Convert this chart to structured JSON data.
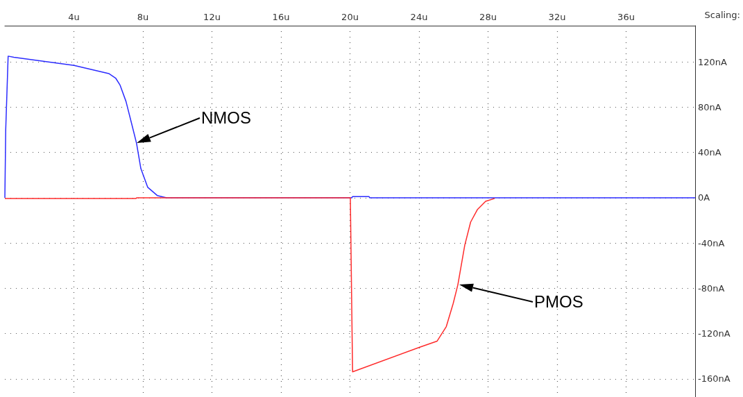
{
  "chart_data": {
    "type": "line",
    "xlim": [
      0,
      40
    ],
    "ylim": [
      -176,
      152
    ],
    "xticks": [
      {
        "value": 4,
        "label": "4u"
      },
      {
        "value": 8,
        "label": "8u"
      },
      {
        "value": 12,
        "label": "12u"
      },
      {
        "value": 16,
        "label": "16u"
      },
      {
        "value": 20,
        "label": "20u"
      },
      {
        "value": 24,
        "label": "24u"
      },
      {
        "value": 28,
        "label": "28u"
      },
      {
        "value": 32,
        "label": "32u"
      },
      {
        "value": 36,
        "label": "36u"
      }
    ],
    "yticks": [
      {
        "value": -160,
        "label": "-160nA"
      },
      {
        "value": -120,
        "label": "-120nA"
      },
      {
        "value": -80,
        "label": "-80nA"
      },
      {
        "value": -40,
        "label": "-40nA"
      },
      {
        "value": 0,
        "label": "0A"
      },
      {
        "value": 40,
        "label": "40nA"
      },
      {
        "value": 80,
        "label": "80nA"
      },
      {
        "value": 120,
        "label": "120nA"
      }
    ],
    "grid": true,
    "marker": "none",
    "series": [
      {
        "color": "#2b2bff",
        "x": [
          0,
          0.05,
          0.19,
          0.52,
          4.01,
          6.02,
          6.42,
          6.67,
          7.02,
          7.36,
          7.63,
          7.88,
          8.28,
          8.83,
          9.37,
          20.1,
          20.15,
          21.1,
          21.15,
          40
        ],
        "values": [
          0,
          60,
          125.1,
          124.1,
          116.9,
          109.7,
          105.7,
          99.7,
          85.1,
          64.6,
          48.2,
          25.8,
          9.2,
          2,
          0,
          0,
          1,
          1,
          0,
          0
        ]
      },
      {
        "color": "#ff2b2b",
        "x": [
          0,
          7.6,
          7.65,
          20.02,
          20.15,
          24.04,
          25.05,
          25.58,
          25.98,
          26.25,
          26.65,
          26.99,
          27.39,
          27.86,
          28.39
        ],
        "values": [
          -0.6,
          -0.6,
          0,
          0,
          -153.8,
          -132,
          -126.6,
          -113.8,
          -93.4,
          -76.9,
          -42,
          -21.5,
          -10.3,
          -3.1,
          -0.6
        ]
      }
    ],
    "annotations": [
      "NMOS",
      "PMOS",
      "Scaling:"
    ]
  }
}
